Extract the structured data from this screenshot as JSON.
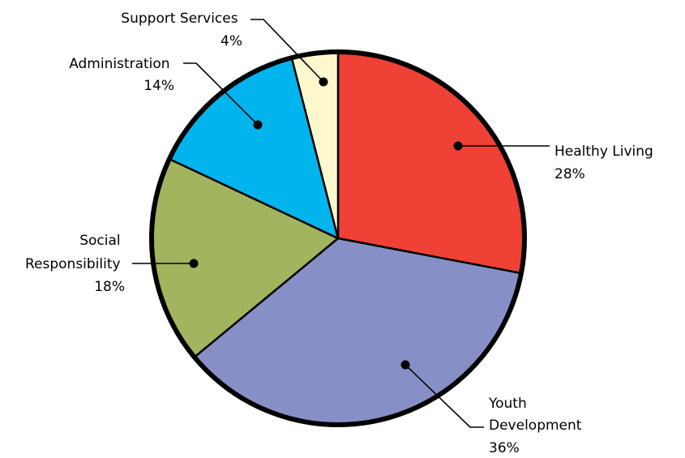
{
  "chart_data": {
    "type": "pie",
    "title": "",
    "start_angle_deg": 0,
    "direction": "clockwise",
    "slices": [
      {
        "label_lines": [
          "Healthy Living"
        ],
        "value_label": "28%",
        "value": 28,
        "color": "#ef4136"
      },
      {
        "label_lines": [
          "Youth",
          "Development"
        ],
        "value_label": "36%",
        "value": 36,
        "color": "#8790c6"
      },
      {
        "label_lines": [
          "Social",
          "Responsibility"
        ],
        "value_label": "18%",
        "value": 18,
        "color": "#a2b45d"
      },
      {
        "label_lines": [
          "Administration"
        ],
        "value_label": "14%",
        "value": 14,
        "color": "#00b5ee"
      },
      {
        "label_lines": [
          "Support Services"
        ],
        "value_label": "4%",
        "value": 4,
        "color": "#fff8cf"
      }
    ]
  }
}
